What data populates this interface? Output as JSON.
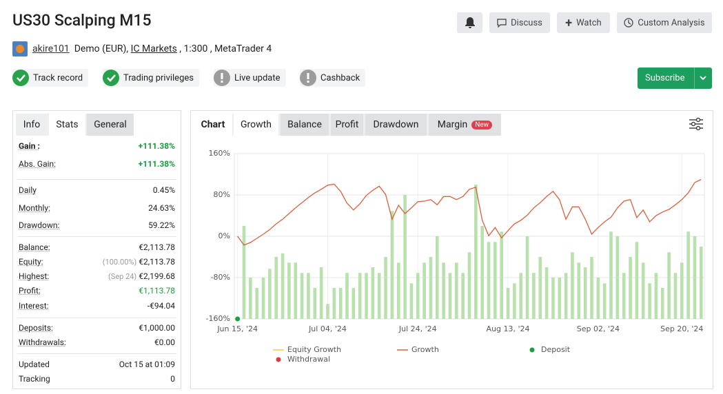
{
  "header": {
    "title": "US30 Scalping M15",
    "buttons": [
      "Discuss",
      "Watch",
      "Custom Analysis"
    ],
    "user": "akire101",
    "account": "Demo (EUR),",
    "broker": "IC Markets",
    "details": ", 1:300 , MetaTrader 4",
    "badges": [
      {
        "label": "Track record",
        "status": "ok"
      },
      {
        "label": "Trading privileges",
        "status": "ok"
      },
      {
        "label": "Live update",
        "status": "warn"
      },
      {
        "label": "Cashback",
        "status": "warn"
      }
    ],
    "subscribe": "Subscribe"
  },
  "stats_panel": {
    "tabs": [
      "Info",
      "Stats",
      "General"
    ],
    "active_tab": 1,
    "groups": [
      [
        {
          "label": "Gain :",
          "value": "+111.38%",
          "value_color": "#1a9e3f"
        },
        {
          "label": "Abs. Gain:",
          "value": "+111.38%",
          "value_color": "#1a9e3f"
        }
      ],
      [
        {
          "label": "Daily",
          "value": "0.45%"
        },
        {
          "label": "Monthly:",
          "value": "24.63%"
        },
        {
          "label": "Drawdown:",
          "value": "59.22%"
        }
      ],
      [
        {
          "label": "Balance:",
          "value": "€2,113.78"
        },
        {
          "label": "Equity:",
          "note": "(100.00%)",
          "value": "€2,113.78"
        },
        {
          "label": "Highest:",
          "note": "(Sep 24)",
          "value": "€2,199.68"
        },
        {
          "label": "Profit:",
          "value": "€1,113.78",
          "value_color": "#1a9e3f"
        },
        {
          "label": "Interest:",
          "value": "-€94.04"
        }
      ],
      [
        {
          "label": "Deposits:",
          "value": "€1,000.00"
        },
        {
          "label": "Withdrawals:",
          "value": "€0.00"
        }
      ],
      [
        {
          "label": "Updated",
          "value": "Oct 15 at 01:09"
        },
        {
          "label": "Tracking",
          "value": "0"
        }
      ]
    ]
  },
  "chart_panel": {
    "tabs": [
      "Chart",
      "Growth",
      "Balance",
      "Profit",
      "Drawdown",
      "Margin"
    ],
    "active_tab": 1,
    "tab_badge": "New",
    "chart_data": {
      "type": "bar_line",
      "grid": true,
      "categories": [
        null,
        null,
        null,
        null,
        null,
        null,
        null,
        null,
        null,
        null,
        null,
        null,
        null,
        null,
        null,
        null,
        null,
        null,
        null,
        null,
        null,
        null,
        null,
        null,
        null,
        null,
        null,
        null,
        null,
        null,
        null,
        null,
        null,
        null,
        null,
        null,
        null,
        null,
        null,
        null,
        null,
        null,
        null,
        null,
        null,
        null,
        null,
        null,
        null,
        null,
        null,
        null,
        null,
        null,
        null,
        null,
        null,
        null,
        null,
        null,
        null,
        null,
        null,
        null,
        null,
        null,
        null,
        null,
        null,
        null,
        null,
        null,
        null
      ],
      "ylim": [
        -160,
        160
      ],
      "yticks": [
        {
          "value": 160,
          "label": "160%"
        },
        {
          "value": 80,
          "label": "80%"
        },
        {
          "value": 0,
          "label": "0%"
        },
        {
          "value": -80,
          "label": "-80%"
        },
        {
          "value": -160,
          "label": "-160%"
        }
      ],
      "xticks": [
        {
          "value": 0,
          "label": "Jun 15, '24"
        },
        {
          "value": 14,
          "label": "Jul 04, '24"
        },
        {
          "value": 28,
          "label": "Jul 24, '24"
        },
        {
          "value": 42,
          "label": "Aug 13, '24"
        },
        {
          "value": 56,
          "label": "Sep 02, '24"
        },
        {
          "value": 69,
          "label": "Sep 20, '24"
        }
      ],
      "bars": {
        "color": "#b9e1ad",
        "values": [
          null,
          20,
          -80,
          -100,
          -80,
          -63,
          -40,
          -33,
          -51,
          -51,
          -71,
          -71,
          -100,
          -60,
          -131,
          -100,
          -100,
          -71,
          -100,
          -71,
          -71,
          -60,
          -71,
          -40,
          49,
          -51,
          80,
          -91,
          -71,
          -51,
          -40,
          0,
          -51,
          -71,
          -51,
          -71,
          -31,
          100,
          20,
          -11,
          -11,
          9,
          -100,
          -91,
          -71,
          0,
          -71,
          -40,
          -60,
          -80,
          -80,
          -71,
          -31,
          -51,
          -60,
          -40,
          -80,
          -91,
          9,
          0,
          -71,
          -40,
          -11,
          -51,
          -91,
          -71,
          -100,
          -31,
          -71,
          -51,
          9,
          0,
          -20
        ]
      },
      "series": [
        {
          "name": "Equity Growth",
          "color": "#f5c842",
          "marker": "line"
        },
        {
          "name": "Growth",
          "color": "#d9603b",
          "marker": "line",
          "values": [
            0,
            -17,
            -12,
            -4,
            4,
            13,
            24,
            33,
            44,
            55,
            65,
            75,
            84,
            91,
            99,
            101,
            87,
            64,
            51,
            63,
            79,
            89,
            97,
            81,
            33,
            60,
            44,
            55,
            67,
            68,
            71,
            61,
            77,
            77,
            71,
            77,
            91,
            95,
            31,
            1,
            17,
            -3,
            11,
            24,
            31,
            41,
            55,
            65,
            77,
            87,
            71,
            33,
            57,
            57,
            33,
            4,
            17,
            28,
            37,
            55,
            68,
            71,
            36,
            51,
            28,
            40,
            47,
            52,
            61,
            71,
            84,
            104,
            110
          ]
        },
        {
          "name": "Deposit",
          "color": "#1a9e3f",
          "marker": "dot",
          "points": [
            {
              "x": 0,
              "value": -160
            }
          ]
        },
        {
          "name": "Withdrawal",
          "color": "#e03b3b",
          "marker": "dot"
        }
      ]
    }
  }
}
